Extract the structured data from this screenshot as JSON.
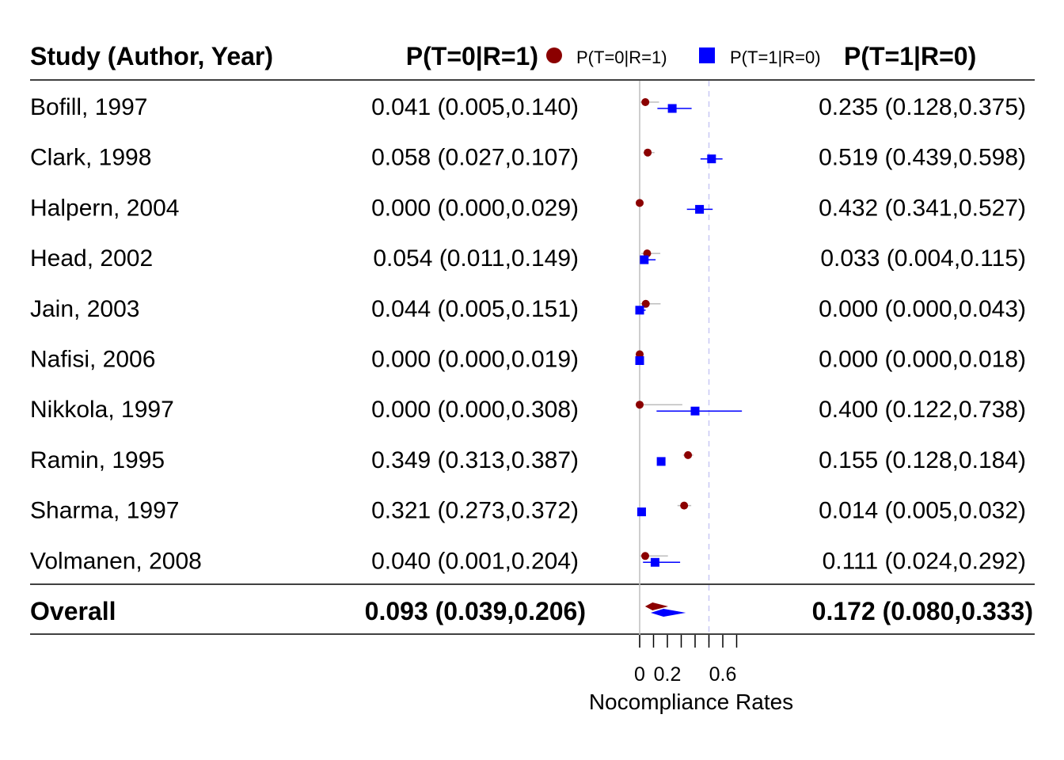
{
  "chart_data": {
    "type": "forest",
    "headers": {
      "study": "Study (Author, Year)",
      "left_stat": "P(T=0|R=1)",
      "right_stat": "P(T=1|R=0)"
    },
    "legend": {
      "series1": "P(T=0|R=1)",
      "series2": "P(T=1|R=0)"
    },
    "series_colors": {
      "series1": "#8B0000",
      "series2": "#0000FF"
    },
    "studies": [
      {
        "label": "Bofill, 1997",
        "left_text": "0.041 (0.005,0.140)",
        "right_text": "0.235 (0.128,0.375)",
        "left": [
          0.041,
          0.005,
          0.14
        ],
        "right": [
          0.235,
          0.128,
          0.375
        ]
      },
      {
        "label": "Clark, 1998",
        "left_text": "0.058 (0.027,0.107)",
        "right_text": "0.519 (0.439,0.598)",
        "left": [
          0.058,
          0.027,
          0.107
        ],
        "right": [
          0.519,
          0.439,
          0.598
        ]
      },
      {
        "label": "Halpern, 2004",
        "left_text": "0.000 (0.000,0.029)",
        "right_text": "0.432 (0.341,0.527)",
        "left": [
          0.0,
          0.0,
          0.029
        ],
        "right": [
          0.432,
          0.341,
          0.527
        ]
      },
      {
        "label": "Head, 2002",
        "left_text": "0.054 (0.011,0.149)",
        "right_text": "0.033 (0.004,0.115)",
        "left": [
          0.054,
          0.011,
          0.149
        ],
        "right": [
          0.033,
          0.004,
          0.115
        ]
      },
      {
        "label": "Jain, 2003",
        "left_text": "0.044 (0.005,0.151)",
        "right_text": "0.000 (0.000,0.043)",
        "left": [
          0.044,
          0.005,
          0.151
        ],
        "right": [
          0.0,
          0.0,
          0.043
        ]
      },
      {
        "label": "Nafisi, 2006",
        "left_text": "0.000 (0.000,0.019)",
        "right_text": "0.000 (0.000,0.018)",
        "left": [
          0.0,
          0.0,
          0.019
        ],
        "right": [
          0.0,
          0.0,
          0.018
        ]
      },
      {
        "label": "Nikkola, 1997",
        "left_text": "0.000 (0.000,0.308)",
        "right_text": "0.400 (0.122,0.738)",
        "left": [
          0.0,
          0.0,
          0.308
        ],
        "right": [
          0.4,
          0.122,
          0.738
        ]
      },
      {
        "label": "Ramin, 1995",
        "left_text": "0.349 (0.313,0.387)",
        "right_text": "0.155 (0.128,0.184)",
        "left": [
          0.349,
          0.313,
          0.387
        ],
        "right": [
          0.155,
          0.128,
          0.184
        ]
      },
      {
        "label": "Sharma, 1997",
        "left_text": "0.321 (0.273,0.372)",
        "right_text": "0.014 (0.005,0.032)",
        "left": [
          0.321,
          0.273,
          0.372
        ],
        "right": [
          0.014,
          0.005,
          0.032
        ]
      },
      {
        "label": "Volmanen, 2008",
        "left_text": "0.040 (0.001,0.204)",
        "right_text": "0.111 (0.024,0.292)",
        "left": [
          0.04,
          0.001,
          0.204
        ],
        "right": [
          0.111,
          0.024,
          0.292
        ]
      }
    ],
    "overall": {
      "label": "Overall",
      "left_text": "0.093 (0.039,0.206)",
      "right_text": "0.172 (0.080,0.333)",
      "left": [
        0.093,
        0.039,
        0.206
      ],
      "right": [
        0.172,
        0.08,
        0.333
      ]
    },
    "reference_lines": {
      "solid": 0,
      "dashed": 0.5
    },
    "x_axis": {
      "label": "Nocompliance Rates",
      "range": [
        0,
        0.7
      ],
      "ticks": [
        0,
        0.1,
        0.2,
        0.3,
        0.4,
        0.5,
        0.6,
        0.7
      ],
      "tick_labels": [
        {
          "value": 0,
          "text": "0"
        },
        {
          "value": 0.2,
          "text": "0.2"
        },
        {
          "value": 0.6,
          "text": "0.6"
        }
      ]
    }
  }
}
